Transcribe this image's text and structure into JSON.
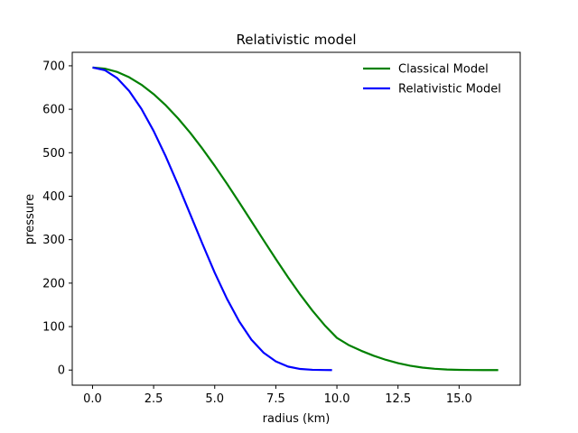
{
  "chart_data": {
    "type": "line",
    "title": "Relativistic model",
    "xlabel": "radius (km)",
    "ylabel": "pressure",
    "xlim": [
      -0.83,
      17.5
    ],
    "ylim": [
      -34.8,
      731
    ],
    "xticks": [
      0.0,
      2.5,
      5.0,
      7.5,
      10.0,
      12.5,
      15.0
    ],
    "xtick_labels": [
      "0.0",
      "2.5",
      "5.0",
      "7.5",
      "10.0",
      "12.5",
      "15.0"
    ],
    "yticks": [
      0,
      100,
      200,
      300,
      400,
      500,
      600,
      700
    ],
    "ytick_labels": [
      "0",
      "100",
      "200",
      "300",
      "400",
      "500",
      "600",
      "700"
    ],
    "grid": false,
    "legend_position": "top-right",
    "series": [
      {
        "name": "Classical Model",
        "color": "#008000",
        "x": [
          0.0,
          0.5,
          1.0,
          1.5,
          2.0,
          2.5,
          3.0,
          3.5,
          4.0,
          4.5,
          5.0,
          5.5,
          6.0,
          6.5,
          7.0,
          7.5,
          8.0,
          8.5,
          9.0,
          9.5,
          10.0,
          10.5,
          11.0,
          11.5,
          12.0,
          12.5,
          13.0,
          13.5,
          14.0,
          14.5,
          15.0,
          15.5,
          16.0,
          16.5,
          16.6
        ],
        "y": [
          696.0,
          693.4,
          686.0,
          673.6,
          656.5,
          634.8,
          608.9,
          579.0,
          545.6,
          509.0,
          469.9,
          428.7,
          386.0,
          342.4,
          298.7,
          255.5,
          213.5,
          173.6,
          136.5,
          103.0,
          74.0,
          57.0,
          44.2,
          33.0,
          23.6,
          15.9,
          10.0,
          5.7,
          2.9,
          1.3,
          0.5,
          0.1,
          0.03,
          0.0,
          0.0
        ]
      },
      {
        "name": "Relativistic Model",
        "color": "#0000ff",
        "x": [
          0.0,
          0.5,
          1.0,
          1.5,
          2.0,
          2.5,
          3.0,
          3.5,
          4.0,
          4.5,
          5.0,
          5.5,
          6.0,
          6.5,
          7.0,
          7.5,
          8.0,
          8.5,
          9.0,
          9.5,
          9.8
        ],
        "y": [
          696.0,
          690.0,
          672.0,
          642.0,
          601.0,
          550.0,
          491.0,
          426.0,
          358.0,
          290.0,
          224.0,
          164.0,
          112.0,
          70.0,
          40.0,
          20.0,
          8.0,
          2.5,
          0.6,
          0.1,
          0.0
        ]
      }
    ]
  }
}
